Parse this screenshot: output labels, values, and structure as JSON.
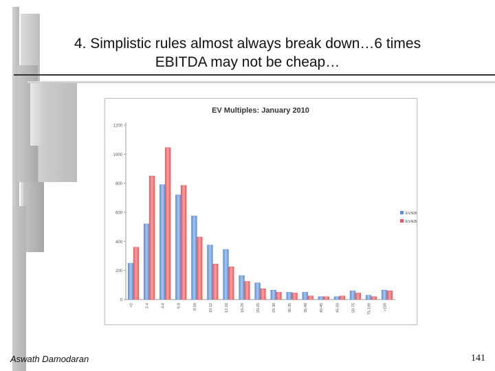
{
  "slide": {
    "title_line1": "4. Simplistic rules almost always break down…6 times",
    "title_line2": "EBITDA may not be cheap…",
    "author": "Aswath Damodaran",
    "page_number": "141"
  },
  "chart_data": {
    "type": "bar",
    "title": "EV Multiples: January 2010",
    "xlabel": "",
    "ylabel": "",
    "ylim": [
      0,
      1200
    ],
    "yticks": [
      0,
      200,
      400,
      600,
      800,
      1000,
      1200
    ],
    "legend_position": "right",
    "categories": [
      "<2",
      "2-4",
      "4-6",
      "6-8",
      "8-10",
      "10-12",
      "12-16",
      "16-20",
      "20-25",
      "25-30",
      "30-35",
      "35-40",
      "40-45",
      "45-50",
      "50-75",
      "75-100",
      ">100"
    ],
    "series": [
      {
        "name": "EV/EBIT",
        "color": "#5b8fd6",
        "values": [
          250,
          520,
          790,
          720,
          575,
          375,
          345,
          165,
          115,
          65,
          50,
          50,
          20,
          20,
          60,
          30,
          65
        ]
      },
      {
        "name": "EV/EBITDA",
        "color": "#e8585a",
        "values": [
          360,
          850,
          1045,
          785,
          430,
          245,
          225,
          125,
          75,
          50,
          45,
          25,
          20,
          25,
          45,
          20,
          60
        ]
      }
    ]
  }
}
